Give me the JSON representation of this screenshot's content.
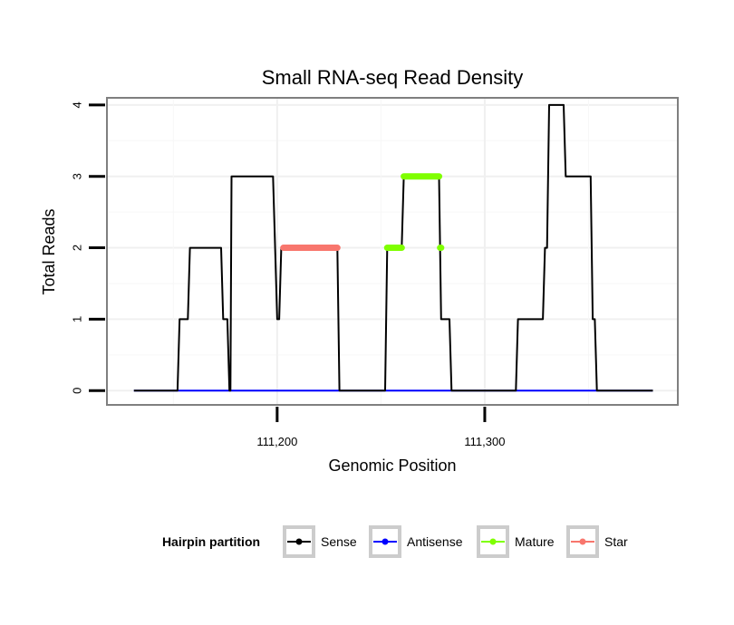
{
  "chart_data": {
    "type": "line",
    "title": "Small RNA-seq Read Density",
    "xlabel": "Genomic Position",
    "ylabel": "Total Reads",
    "xlim": [
      111118,
      111393
    ],
    "ylim": [
      -0.2,
      4.1
    ],
    "x_ticks": [
      111200,
      111300
    ],
    "x_tick_labels": [
      "111,200",
      "111,300"
    ],
    "y_ticks": [
      0,
      1,
      2,
      3,
      4
    ],
    "y_tick_labels": [
      "0",
      "1",
      "2",
      "3",
      "4"
    ],
    "grid": true,
    "legend": {
      "title": "Hairpin partition",
      "position": "bottom",
      "entries": [
        {
          "label": "Sense",
          "color": "#000000"
        },
        {
          "label": "Antisense",
          "color": "#0000ff"
        },
        {
          "label": "Mature",
          "color": "#7fff00"
        },
        {
          "label": "Star",
          "color": "#f8766d"
        }
      ]
    },
    "series": [
      {
        "name": "Sense",
        "color": "#000000",
        "x": [
          111131,
          111152,
          111153,
          111157,
          111158,
          111173,
          111174,
          111176,
          111177,
          111177.5,
          111178,
          111198,
          111199,
          111200,
          111201,
          111202,
          111203,
          111229,
          111230,
          111252,
          111253,
          111260,
          111261,
          111278,
          111279,
          111283,
          111284,
          111315,
          111316,
          111328,
          111329,
          111330,
          111331,
          111338,
          111339,
          111351,
          111352,
          111353,
          111354,
          111381
        ],
        "y": [
          0,
          0,
          1,
          1,
          2,
          2,
          1,
          1,
          0,
          0,
          3,
          3,
          2,
          1,
          1,
          2,
          2,
          2,
          0,
          0,
          2,
          2,
          3,
          3,
          1,
          1,
          0,
          0,
          1,
          1,
          2,
          2,
          4,
          4,
          3,
          3,
          1,
          1,
          0,
          0
        ]
      },
      {
        "name": "Antisense",
        "color": "#0000ff",
        "x": [
          111131,
          111381
        ],
        "y": [
          0,
          0
        ]
      },
      {
        "name": "Mature",
        "color": "#7fff00",
        "segments": [
          {
            "x": [
              111253,
              111260
            ],
            "y": [
              2,
              2
            ]
          },
          {
            "x": [
              111261,
              111278
            ],
            "y": [
              3,
              3
            ]
          },
          {
            "x": [
              111278.5,
              111279
            ],
            "y": [
              2,
              2
            ]
          }
        ]
      },
      {
        "name": "Star",
        "color": "#f8766d",
        "segments": [
          {
            "x": [
              111203,
              111229
            ],
            "y": [
              2,
              2
            ]
          }
        ]
      }
    ]
  }
}
